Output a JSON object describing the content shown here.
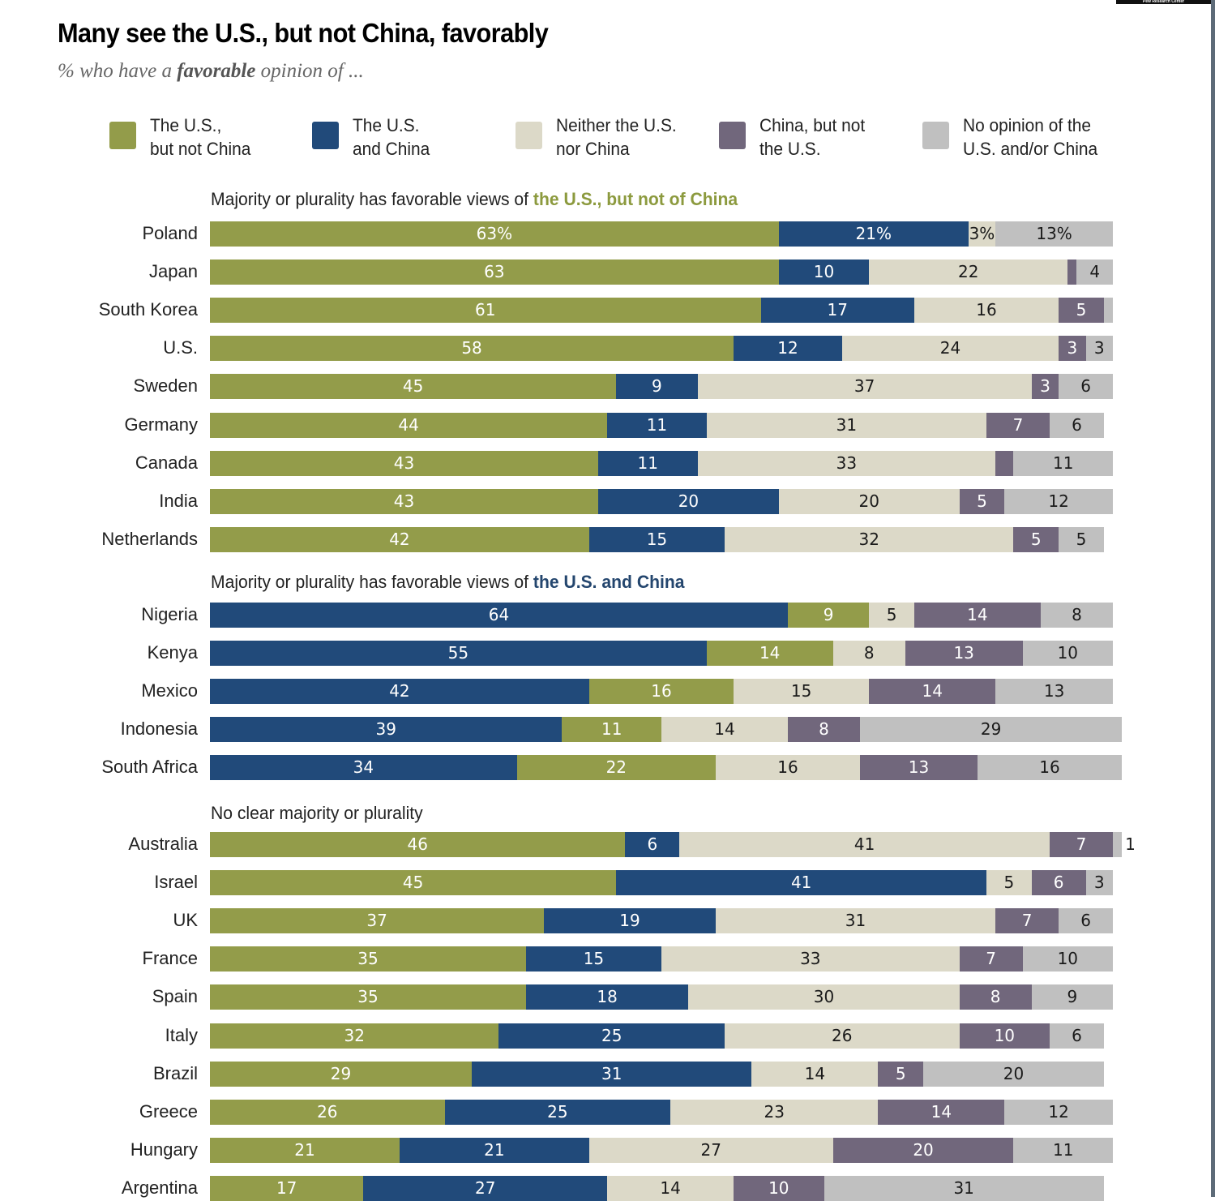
{
  "header": {
    "title": "Many see the U.S., but not China, favorably",
    "subtitle_prefix": "% who have a ",
    "subtitle_emphasis": "favorable",
    "subtitle_suffix": " opinion of ...",
    "credit": "Pew Research Center"
  },
  "colors": {
    "us_not_china": "#939c4a",
    "us_and_china": "#214a7a",
    "neither": "#dcd9c8",
    "china_not_us": "#71677c",
    "no_opinion": "#c0c0c0",
    "section_green": "#8c9a3e",
    "section_blue": "#24466e"
  },
  "legend": [
    {
      "key": "us_not_china",
      "label": "The U.S.,\nbut not China"
    },
    {
      "key": "us_and_china",
      "label": "The U.S.\nand China"
    },
    {
      "key": "neither",
      "label": "Neither the U.S.\nnor China"
    },
    {
      "key": "china_not_us",
      "label": "China, but not\nthe U.S."
    },
    {
      "key": "no_opinion",
      "label": "No opinion of the\nU.S. and/or China"
    }
  ],
  "chart_data": {
    "type": "bar",
    "orientation": "horizontal-stacked",
    "title": "Many see the U.S., but not China, favorably",
    "subtitle": "% who have a favorable opinion of ...",
    "unit": "%",
    "xlim": [
      0,
      100
    ],
    "series_keys": [
      "us_not_china",
      "us_and_china",
      "neither",
      "china_not_us",
      "no_opinion"
    ],
    "series_names": [
      "The U.S., but not China",
      "The U.S. and China",
      "Neither the U.S. nor China",
      "China, but not the U.S.",
      "No opinion of the U.S. and/or China"
    ],
    "legend_position": "top",
    "groups": [
      {
        "title_prefix": "Majority or plurality has favorable views of ",
        "title_highlight": "the U.S., but not of China",
        "highlight_color_key": "section_green",
        "order": [
          "us_not_china",
          "us_and_china",
          "neither",
          "china_not_us",
          "no_opinion"
        ],
        "rows": [
          {
            "country": "Poland",
            "values": {
              "us_not_china": 63,
              "us_and_china": 21,
              "neither": 3,
              "china_not_us": 0,
              "no_opinion": 13
            },
            "labels": {
              "us_not_china": "63%",
              "us_and_china": "21%",
              "neither": "3%",
              "china_not_us": "",
              "no_opinion": "13%"
            }
          },
          {
            "country": "Japan",
            "values": {
              "us_not_china": 63,
              "us_and_china": 10,
              "neither": 22,
              "china_not_us": 1,
              "no_opinion": 4
            },
            "labels": {
              "us_not_china": "63",
              "us_and_china": "10",
              "neither": "22",
              "china_not_us": "",
              "no_opinion": "4"
            }
          },
          {
            "country": "South Korea",
            "values": {
              "us_not_china": 61,
              "us_and_china": 17,
              "neither": 16,
              "china_not_us": 5,
              "no_opinion": 1
            },
            "labels": {
              "us_not_china": "61",
              "us_and_china": "17",
              "neither": "16",
              "china_not_us": "5",
              "no_opinion": ""
            }
          },
          {
            "country": "U.S.",
            "values": {
              "us_not_china": 58,
              "us_and_china": 12,
              "neither": 24,
              "china_not_us": 3,
              "no_opinion": 3
            },
            "labels": {
              "us_not_china": "58",
              "us_and_china": "12",
              "neither": "24",
              "china_not_us": "3",
              "no_opinion": "3"
            }
          },
          {
            "country": "Sweden",
            "values": {
              "us_not_china": 45,
              "us_and_china": 9,
              "neither": 37,
              "china_not_us": 3,
              "no_opinion": 6
            },
            "labels": {
              "us_not_china": "45",
              "us_and_china": "9",
              "neither": "37",
              "china_not_us": "3",
              "no_opinion": "6"
            }
          },
          {
            "country": "Germany",
            "values": {
              "us_not_china": 44,
              "us_and_china": 11,
              "neither": 31,
              "china_not_us": 7,
              "no_opinion": 6
            },
            "labels": {
              "us_not_china": "44",
              "us_and_china": "11",
              "neither": "31",
              "china_not_us": "7",
              "no_opinion": "6"
            }
          },
          {
            "country": "Canada",
            "values": {
              "us_not_china": 43,
              "us_and_china": 11,
              "neither": 33,
              "china_not_us": 2,
              "no_opinion": 11
            },
            "labels": {
              "us_not_china": "43",
              "us_and_china": "11",
              "neither": "33",
              "china_not_us": "",
              "no_opinion": "11"
            }
          },
          {
            "country": "India",
            "values": {
              "us_not_china": 43,
              "us_and_china": 20,
              "neither": 20,
              "china_not_us": 5,
              "no_opinion": 12
            },
            "labels": {
              "us_not_china": "43",
              "us_and_china": "20",
              "neither": "20",
              "china_not_us": "5",
              "no_opinion": "12"
            }
          },
          {
            "country": "Netherlands",
            "values": {
              "us_not_china": 42,
              "us_and_china": 15,
              "neither": 32,
              "china_not_us": 5,
              "no_opinion": 5
            },
            "labels": {
              "us_not_china": "42",
              "us_and_china": "15",
              "neither": "32",
              "china_not_us": "5",
              "no_opinion": "5"
            }
          }
        ]
      },
      {
        "title_prefix": "Majority or plurality has favorable views of ",
        "title_highlight": "the U.S. and China",
        "highlight_color_key": "section_blue",
        "order": [
          "us_and_china",
          "us_not_china",
          "neither",
          "china_not_us",
          "no_opinion"
        ],
        "rows": [
          {
            "country": "Nigeria",
            "values": {
              "us_and_china": 64,
              "us_not_china": 9,
              "neither": 5,
              "china_not_us": 14,
              "no_opinion": 8
            },
            "labels": {
              "us_and_china": "64",
              "us_not_china": "9",
              "neither": "5",
              "china_not_us": "14",
              "no_opinion": "8"
            }
          },
          {
            "country": "Kenya",
            "values": {
              "us_and_china": 55,
              "us_not_china": 14,
              "neither": 8,
              "china_not_us": 13,
              "no_opinion": 10
            },
            "labels": {
              "us_and_china": "55",
              "us_not_china": "14",
              "neither": "8",
              "china_not_us": "13",
              "no_opinion": "10"
            }
          },
          {
            "country": "Mexico",
            "values": {
              "us_and_china": 42,
              "us_not_china": 16,
              "neither": 15,
              "china_not_us": 14,
              "no_opinion": 13
            },
            "labels": {
              "us_and_china": "42",
              "us_not_china": "16",
              "neither": "15",
              "china_not_us": "14",
              "no_opinion": "13"
            }
          },
          {
            "country": "Indonesia",
            "values": {
              "us_and_china": 39,
              "us_not_china": 11,
              "neither": 14,
              "china_not_us": 8,
              "no_opinion": 29
            },
            "labels": {
              "us_and_china": "39",
              "us_not_china": "11",
              "neither": "14",
              "china_not_us": "8",
              "no_opinion": "29"
            }
          },
          {
            "country": "South Africa",
            "values": {
              "us_and_china": 34,
              "us_not_china": 22,
              "neither": 16,
              "china_not_us": 13,
              "no_opinion": 16
            },
            "labels": {
              "us_and_china": "34",
              "us_not_china": "22",
              "neither": "16",
              "china_not_us": "13",
              "no_opinion": "16"
            }
          }
        ]
      },
      {
        "title_prefix": "No clear majority or plurality",
        "title_highlight": "",
        "highlight_color_key": "",
        "order": [
          "us_not_china",
          "us_and_china",
          "neither",
          "china_not_us",
          "no_opinion"
        ],
        "rows": [
          {
            "country": "Australia",
            "values": {
              "us_not_china": 46,
              "us_and_china": 6,
              "neither": 41,
              "china_not_us": 7,
              "no_opinion": 1
            },
            "labels": {
              "us_not_china": "46",
              "us_and_china": "6",
              "neither": "41",
              "china_not_us": "7",
              "no_opinion": "1"
            },
            "outside_label": "no_opinion"
          },
          {
            "country": "Israel",
            "values": {
              "us_not_china": 45,
              "us_and_china": 41,
              "neither": 5,
              "china_not_us": 6,
              "no_opinion": 3
            },
            "labels": {
              "us_not_china": "45",
              "us_and_china": "41",
              "neither": "5",
              "china_not_us": "6",
              "no_opinion": "3"
            }
          },
          {
            "country": "UK",
            "values": {
              "us_not_china": 37,
              "us_and_china": 19,
              "neither": 31,
              "china_not_us": 7,
              "no_opinion": 6
            },
            "labels": {
              "us_not_china": "37",
              "us_and_china": "19",
              "neither": "31",
              "china_not_us": "7",
              "no_opinion": "6"
            }
          },
          {
            "country": "France",
            "values": {
              "us_not_china": 35,
              "us_and_china": 15,
              "neither": 33,
              "china_not_us": 7,
              "no_opinion": 10
            },
            "labels": {
              "us_not_china": "35",
              "us_and_china": "15",
              "neither": "33",
              "china_not_us": "7",
              "no_opinion": "10"
            }
          },
          {
            "country": "Spain",
            "values": {
              "us_not_china": 35,
              "us_and_china": 18,
              "neither": 30,
              "china_not_us": 8,
              "no_opinion": 9
            },
            "labels": {
              "us_not_china": "35",
              "us_and_china": "18",
              "neither": "30",
              "china_not_us": "8",
              "no_opinion": "9"
            }
          },
          {
            "country": "Italy",
            "values": {
              "us_not_china": 32,
              "us_and_china": 25,
              "neither": 26,
              "china_not_us": 10,
              "no_opinion": 6
            },
            "labels": {
              "us_not_china": "32",
              "us_and_china": "25",
              "neither": "26",
              "china_not_us": "10",
              "no_opinion": "6"
            }
          },
          {
            "country": "Brazil",
            "values": {
              "us_not_china": 29,
              "us_and_china": 31,
              "neither": 14,
              "china_not_us": 5,
              "no_opinion": 20
            },
            "labels": {
              "us_not_china": "29",
              "us_and_china": "31",
              "neither": "14",
              "china_not_us": "5",
              "no_opinion": "20"
            }
          },
          {
            "country": "Greece",
            "values": {
              "us_not_china": 26,
              "us_and_china": 25,
              "neither": 23,
              "china_not_us": 14,
              "no_opinion": 12
            },
            "labels": {
              "us_not_china": "26",
              "us_and_china": "25",
              "neither": "23",
              "china_not_us": "14",
              "no_opinion": "12"
            }
          },
          {
            "country": "Hungary",
            "values": {
              "us_not_china": 21,
              "us_and_china": 21,
              "neither": 27,
              "china_not_us": 20,
              "no_opinion": 11
            },
            "labels": {
              "us_not_china": "21",
              "us_and_china": "21",
              "neither": "27",
              "china_not_us": "20",
              "no_opinion": "11"
            }
          },
          {
            "country": "Argentina",
            "values": {
              "us_not_china": 17,
              "us_and_china": 27,
              "neither": 14,
              "china_not_us": 10,
              "no_opinion": 31
            },
            "labels": {
              "us_not_china": "17",
              "us_and_china": "27",
              "neither": "14",
              "china_not_us": "10",
              "no_opinion": "31"
            }
          }
        ]
      }
    ]
  }
}
